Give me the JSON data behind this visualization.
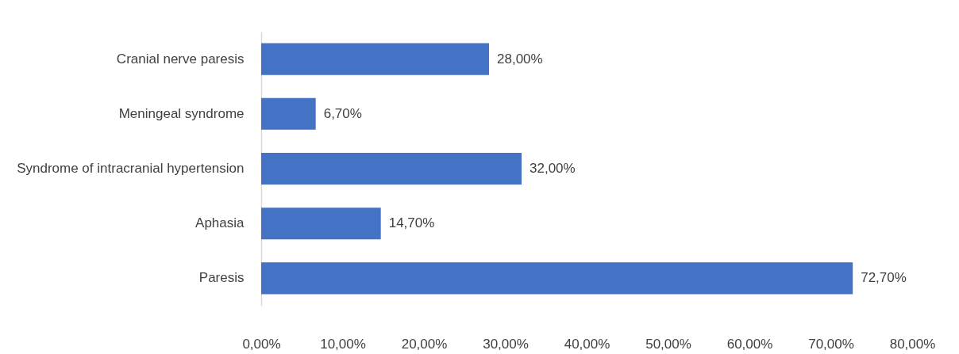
{
  "chart_data": {
    "type": "bar",
    "orientation": "horizontal",
    "categories": [
      "Cranial nerve paresis",
      "Meningeal syndrome",
      "Syndrome of intracranial hypertension",
      "Aphasia",
      "Paresis"
    ],
    "values": [
      28.0,
      6.7,
      32.0,
      14.7,
      72.7
    ],
    "value_labels": [
      "28,00%",
      "6,70%",
      "32,00%",
      "14,70%",
      "72,70%"
    ],
    "color": "#4472c4",
    "xlim": [
      0,
      80
    ],
    "xticks": [
      {
        "value": 0,
        "label": "0,00%"
      },
      {
        "value": 10,
        "label": "10,00%"
      },
      {
        "value": 20,
        "label": "20,00%"
      },
      {
        "value": 30,
        "label": "30,00%"
      },
      {
        "value": 40,
        "label": "40,00%"
      },
      {
        "value": 50,
        "label": "50,00%"
      },
      {
        "value": 60,
        "label": "60,00%"
      },
      {
        "value": 70,
        "label": "70,00%"
      },
      {
        "value": 80,
        "label": "80,00%"
      }
    ],
    "grid": false
  }
}
